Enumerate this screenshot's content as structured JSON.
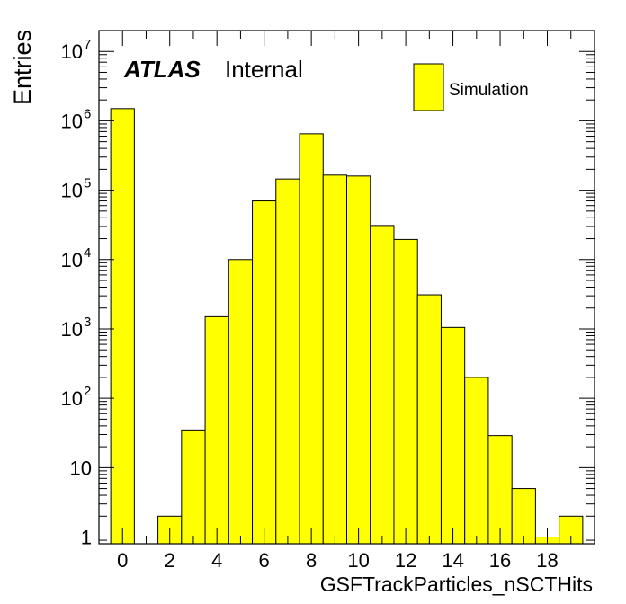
{
  "chart_data": {
    "type": "bar",
    "title": "",
    "xlabel": "GSFTrackParticles_nSCTHits",
    "ylabel": "Entries",
    "y_scale": "log",
    "xlim": [
      -1,
      20
    ],
    "ylim": [
      0.8,
      20000000
    ],
    "x_ticks": [
      0,
      2,
      4,
      6,
      8,
      10,
      12,
      14,
      16,
      18
    ],
    "y_tick_labels": [
      {
        "value": 1,
        "base": "1",
        "exp": ""
      },
      {
        "value": 10,
        "base": "10",
        "exp": ""
      },
      {
        "value": 100,
        "base": "10",
        "exp": "2"
      },
      {
        "value": 1000,
        "base": "10",
        "exp": "3"
      },
      {
        "value": 10000,
        "base": "10",
        "exp": "4"
      },
      {
        "value": 100000,
        "base": "10",
        "exp": "5"
      },
      {
        "value": 1000000,
        "base": "10",
        "exp": "6"
      },
      {
        "value": 10000000,
        "base": "10",
        "exp": "7"
      }
    ],
    "bin_width": 1,
    "bins": [
      {
        "x": 0,
        "value": 1500000
      },
      {
        "x": 1,
        "value": 0
      },
      {
        "x": 2,
        "value": 2
      },
      {
        "x": 3,
        "value": 35
      },
      {
        "x": 4,
        "value": 1500
      },
      {
        "x": 5,
        "value": 10000
      },
      {
        "x": 6,
        "value": 70000
      },
      {
        "x": 7,
        "value": 145000
      },
      {
        "x": 8,
        "value": 650000
      },
      {
        "x": 9,
        "value": 165000
      },
      {
        "x": 10,
        "value": 160000
      },
      {
        "x": 11,
        "value": 31000
      },
      {
        "x": 12,
        "value": 19500
      },
      {
        "x": 13,
        "value": 3100
      },
      {
        "x": 14,
        "value": 1050
      },
      {
        "x": 15,
        "value": 200
      },
      {
        "x": 16,
        "value": 29
      },
      {
        "x": 17,
        "value": 5
      },
      {
        "x": 18,
        "value": 1
      },
      {
        "x": 19,
        "value": 2
      }
    ],
    "series": [
      {
        "name": "Simulation",
        "color": "#ffff00"
      }
    ],
    "legend_position": "top-right",
    "atlas_label": "ATLAS",
    "atlas_sublabel": "Internal"
  }
}
